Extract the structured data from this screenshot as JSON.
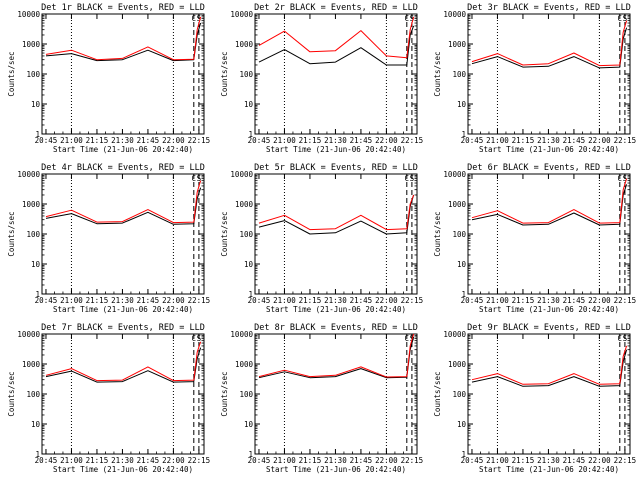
{
  "colors": {
    "events": "#000000",
    "lld": "#ff0000",
    "background": "#ffffff"
  },
  "layout_note": "3x3 grid of log-scale line plots",
  "chart_data": [
    {
      "type": "line",
      "title": "Det 1r BLACK = Events, RED = LLD",
      "xlabel": "Start Time (21-Jun-06 20:42:40)",
      "ylabel": "Counts/sec",
      "ylog": true,
      "ylim": [
        1,
        10000
      ],
      "yticks": [
        "1",
        "10",
        "100",
        "1000",
        "10000"
      ],
      "xticks": [
        "20:45",
        "21:00",
        "21:15",
        "21:30",
        "21:45",
        "22:00",
        "22:15"
      ],
      "x": [
        "20:45",
        "21:00",
        "21:15",
        "21:30",
        "21:45",
        "22:00",
        "22:12",
        "22:14",
        "22:16"
      ],
      "vlines_dotted": [
        "21:00",
        "22:00"
      ],
      "vlines_dashed": [
        "22:12",
        "22:15"
      ],
      "markers": [
        "C",
        "S"
      ],
      "series": [
        {
          "name": "Events",
          "values": [
            400,
            480,
            280,
            300,
            620,
            280,
            300,
            2000,
            5000
          ]
        },
        {
          "name": "LLD",
          "values": [
            450,
            620,
            300,
            330,
            800,
            300,
            310,
            3000,
            8000
          ]
        }
      ]
    },
    {
      "type": "line",
      "title": "Det 2r BLACK = Events, RED = LLD",
      "xlabel": "Start Time (21-Jun-06 20:42:40)",
      "ylabel": "Counts/sec",
      "ylog": true,
      "ylim": [
        1,
        10000
      ],
      "yticks": [
        "1",
        "10",
        "100",
        "1000",
        "10000"
      ],
      "xticks": [
        "20:45",
        "21:00",
        "21:15",
        "21:30",
        "21:45",
        "22:00",
        "22:15"
      ],
      "x": [
        "20:45",
        "21:00",
        "21:15",
        "21:30",
        "21:45",
        "22:00",
        "22:12",
        "22:14",
        "22:16"
      ],
      "vlines_dotted": [
        "21:00",
        "22:00"
      ],
      "vlines_dashed": [
        "22:12",
        "22:15"
      ],
      "markers": [
        "C",
        "S"
      ],
      "series": [
        {
          "name": "Events",
          "values": [
            250,
            650,
            220,
            250,
            750,
            200,
            200,
            2000,
            4000
          ]
        },
        {
          "name": "LLD",
          "values": [
            900,
            2700,
            550,
            600,
            2800,
            400,
            350,
            3000,
            8000
          ]
        }
      ]
    },
    {
      "type": "line",
      "title": "Det 3r BLACK = Events, RED = LLD",
      "xlabel": "Start Time (21-Jun-06 20:42:40)",
      "ylabel": "Counts/sec",
      "ylog": true,
      "ylim": [
        1,
        10000
      ],
      "yticks": [
        "1",
        "10",
        "100",
        "1000",
        "10000"
      ],
      "xticks": [
        "20:45",
        "21:00",
        "21:15",
        "21:30",
        "21:45",
        "22:00",
        "22:15"
      ],
      "x": [
        "20:45",
        "21:00",
        "21:15",
        "21:30",
        "21:45",
        "22:00",
        "22:12",
        "22:14",
        "22:16"
      ],
      "vlines_dotted": [
        "21:00",
        "22:00"
      ],
      "vlines_dashed": [
        "22:12",
        "22:15"
      ],
      "markers": [
        "C",
        "S"
      ],
      "series": [
        {
          "name": "Events",
          "values": [
            220,
            380,
            170,
            180,
            380,
            160,
            170,
            1500,
            3500
          ]
        },
        {
          "name": "LLD",
          "values": [
            260,
            480,
            200,
            220,
            500,
            190,
            200,
            2500,
            6000
          ]
        }
      ]
    },
    {
      "type": "line",
      "title": "Det 4r BLACK = Events, RED = LLD",
      "xlabel": "Start Time (21-Jun-06 20:42:40)",
      "ylabel": "Counts/sec",
      "ylog": true,
      "ylim": [
        1,
        10000
      ],
      "yticks": [
        "1",
        "10",
        "100",
        "1000",
        "10000"
      ],
      "xticks": [
        "20:45",
        "21:00",
        "21:15",
        "21:30",
        "21:45",
        "22:00",
        "22:15"
      ],
      "x": [
        "20:45",
        "21:00",
        "21:15",
        "21:30",
        "21:45",
        "22:00",
        "22:12",
        "22:14",
        "22:16"
      ],
      "vlines_dotted": [
        "21:00",
        "22:00"
      ],
      "vlines_dashed": [
        "22:12",
        "22:15"
      ],
      "markers": [
        "C",
        "S"
      ],
      "series": [
        {
          "name": "Events",
          "values": [
            330,
            480,
            220,
            230,
            530,
            210,
            220,
            1500,
            3500
          ]
        },
        {
          "name": "LLD",
          "values": [
            380,
            620,
            250,
            260,
            650,
            240,
            250,
            2500,
            6000
          ]
        }
      ]
    },
    {
      "type": "line",
      "title": "Det 5r BLACK = Events, RED = LLD",
      "xlabel": "Start Time (21-Jun-06 20:42:40)",
      "ylabel": "Counts/sec",
      "ylog": true,
      "ylim": [
        1,
        10000
      ],
      "yticks": [
        "1",
        "10",
        "100",
        "1000",
        "10000"
      ],
      "xticks": [
        "20:45",
        "21:00",
        "21:15",
        "21:30",
        "21:45",
        "22:00",
        "22:15"
      ],
      "x": [
        "20:45",
        "21:00",
        "21:15",
        "21:30",
        "21:45",
        "22:00",
        "22:12",
        "22:14",
        "22:16"
      ],
      "vlines_dotted": [
        "21:00",
        "22:00"
      ],
      "vlines_dashed": [
        "22:12",
        "22:15"
      ],
      "markers": [
        "C",
        "S"
      ],
      "series": [
        {
          "name": "Events",
          "values": [
            170,
            280,
            100,
            110,
            270,
            100,
            110,
            800,
            2000
          ]
        },
        {
          "name": "LLD",
          "values": [
            230,
            420,
            140,
            150,
            420,
            140,
            150,
            1000,
            2000
          ]
        }
      ]
    },
    {
      "type": "line",
      "title": "Det 6r BLACK = Events, RED = LLD",
      "xlabel": "Start Time (21-Jun-06 20:42:40)",
      "ylabel": "Counts/sec",
      "ylog": true,
      "ylim": [
        1,
        10000
      ],
      "yticks": [
        "1",
        "10",
        "100",
        "1000",
        "10000"
      ],
      "xticks": [
        "20:45",
        "21:00",
        "21:15",
        "21:30",
        "21:45",
        "22:00",
        "22:15"
      ],
      "x": [
        "20:45",
        "21:00",
        "21:15",
        "21:30",
        "21:45",
        "22:00",
        "22:12",
        "22:14",
        "22:16"
      ],
      "vlines_dotted": [
        "21:00",
        "22:00"
      ],
      "vlines_dashed": [
        "22:12",
        "22:15"
      ],
      "markers": [
        "C",
        "S"
      ],
      "series": [
        {
          "name": "Events",
          "values": [
            300,
            450,
            200,
            210,
            500,
            200,
            210,
            2000,
            4500
          ]
        },
        {
          "name": "LLD",
          "values": [
            350,
            600,
            230,
            240,
            650,
            230,
            240,
            3000,
            7000
          ]
        }
      ]
    },
    {
      "type": "line",
      "title": "Det 7r BLACK = Events, RED = LLD",
      "xlabel": "Start Time (21-Jun-06 20:42:40)",
      "ylabel": "Counts/sec",
      "ylog": true,
      "ylim": [
        1,
        10000
      ],
      "yticks": [
        "1",
        "10",
        "100",
        "1000",
        "10000"
      ],
      "xticks": [
        "20:45",
        "21:00",
        "21:15",
        "21:30",
        "21:45",
        "22:00",
        "22:15"
      ],
      "x": [
        "20:45",
        "21:00",
        "21:15",
        "21:30",
        "21:45",
        "22:00",
        "22:12",
        "22:14",
        "22:16"
      ],
      "vlines_dotted": [
        "21:00",
        "22:00"
      ],
      "vlines_dashed": [
        "22:12",
        "22:15"
      ],
      "markers": [
        "C",
        "S"
      ],
      "series": [
        {
          "name": "Events",
          "values": [
            380,
            580,
            250,
            260,
            600,
            250,
            260,
            1500,
            3500
          ]
        },
        {
          "name": "LLD",
          "values": [
            420,
            700,
            280,
            290,
            800,
            280,
            290,
            2500,
            5500
          ]
        }
      ]
    },
    {
      "type": "line",
      "title": "Det 8r BLACK = Events, RED = LLD",
      "xlabel": "Start Time (21-Jun-06 20:42:40)",
      "ylabel": "Counts/sec",
      "ylog": true,
      "ylim": [
        1,
        10000
      ],
      "yticks": [
        "1",
        "10",
        "100",
        "1000",
        "10000"
      ],
      "xticks": [
        "20:45",
        "21:00",
        "21:15",
        "21:30",
        "21:45",
        "22:00",
        "22:15"
      ],
      "x": [
        "20:45",
        "21:00",
        "21:15",
        "21:30",
        "21:45",
        "22:00",
        "22:12",
        "22:14",
        "22:16"
      ],
      "vlines_dotted": [
        "21:00",
        "22:00"
      ],
      "vlines_dashed": [
        "22:12",
        "22:15"
      ],
      "markers": [
        "C",
        "S"
      ],
      "series": [
        {
          "name": "Events",
          "values": [
            350,
            550,
            350,
            380,
            700,
            350,
            360,
            3000,
            8000
          ]
        },
        {
          "name": "LLD",
          "values": [
            380,
            620,
            380,
            420,
            800,
            370,
            380,
            4000,
            10000
          ]
        }
      ]
    },
    {
      "type": "line",
      "title": "Det 9r BLACK = Events, RED = LLD",
      "xlabel": "Start Time (21-Jun-06 20:42:40)",
      "ylabel": "Counts/sec",
      "ylog": true,
      "ylim": [
        1,
        10000
      ],
      "yticks": [
        "1",
        "10",
        "100",
        "1000",
        "10000"
      ],
      "xticks": [
        "20:45",
        "21:00",
        "21:15",
        "21:30",
        "21:45",
        "22:00",
        "22:15"
      ],
      "x": [
        "20:45",
        "21:00",
        "21:15",
        "21:30",
        "21:45",
        "22:00",
        "22:12",
        "22:14",
        "22:16"
      ],
      "vlines_dotted": [
        "21:00",
        "22:00"
      ],
      "vlines_dashed": [
        "22:12",
        "22:15"
      ],
      "markers": [
        "C",
        "S"
      ],
      "series": [
        {
          "name": "Events",
          "values": [
            250,
            380,
            180,
            190,
            380,
            180,
            190,
            1200,
            3000
          ]
        },
        {
          "name": "LLD",
          "values": [
            300,
            480,
            210,
            220,
            480,
            210,
            220,
            1800,
            4000
          ]
        }
      ]
    }
  ]
}
